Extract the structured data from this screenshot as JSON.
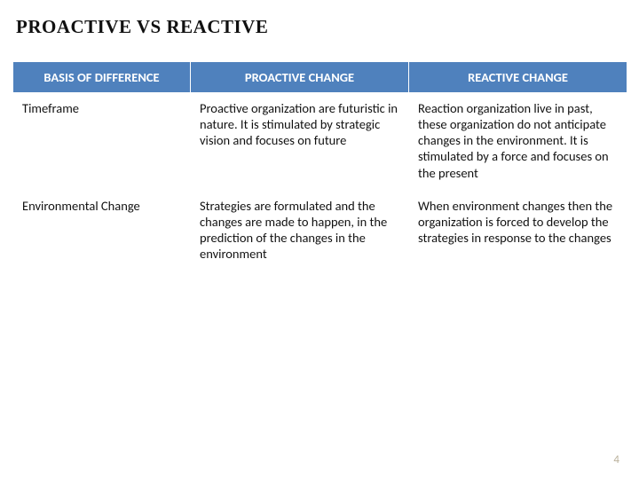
{
  "title": "PROACTIVE VS REACTIVE",
  "table": {
    "header_bg": "#4f81bd",
    "header_fg": "#ffffff",
    "columns": [
      "BASIS OF DIFFERENCE",
      "PROACTIVE CHANGE",
      "REACTIVE CHANGE"
    ],
    "rows": [
      {
        "basis": "Timeframe",
        "proactive": "Proactive organization are futuristic in nature. It is stimulated by strategic vision and focuses on future",
        "reactive": "Reaction organization live in past, these organization do not anticipate changes in the environment. It is stimulated by a force and focuses on the present"
      },
      {
        "basis": "Environmental Change",
        "proactive": "Strategies are formulated and the changes are made to happen, in the prediction of the changes in the environment",
        "reactive": "When environment changes then the organization is forced to develop the strategies in response to the changes"
      }
    ]
  },
  "page_number": "4"
}
